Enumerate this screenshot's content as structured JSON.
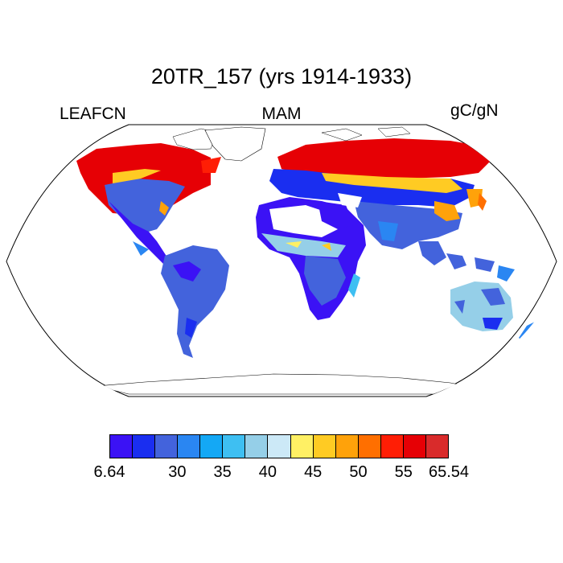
{
  "title": "20TR_157 (yrs 1914-1933)",
  "variable": "LEAFCN",
  "season": "MAM",
  "units": "gC/gN",
  "colorbar": {
    "colors": [
      "#3b12f5",
      "#1a2ef0",
      "#4363dc",
      "#2a86f2",
      "#14a8f5",
      "#3ebff2",
      "#95cfe8",
      "#cce9f7",
      "#fff064",
      "#ffcb23",
      "#ffa20a",
      "#ff6f00",
      "#ff1e05",
      "#e60005",
      "#d92b2b"
    ],
    "tick_labels": [
      "6.64",
      "30",
      "35",
      "40",
      "45",
      "50",
      "55",
      "65.54"
    ]
  },
  "chart_data": {
    "type": "heatmap",
    "projection": "Robinson (global)",
    "title": "20TR_157 (yrs 1914-1933)",
    "left_label": "LEAFCN",
    "center_label": "MAM",
    "right_label": "gC/gN",
    "value_range": [
      6.64,
      65.54
    ],
    "levels": [
      30,
      32.5,
      35,
      37.5,
      40,
      42.5,
      45,
      47.5,
      50,
      52.5,
      55,
      60
    ],
    "regions": [
      {
        "region": "High-latitude North America",
        "approx_value": 58
      },
      {
        "region": "Eastern North America",
        "approx_value": 30
      },
      {
        "region": "South America",
        "approx_value": 30
      },
      {
        "region": "Sahara (sparse)",
        "approx_value": 28
      },
      {
        "region": "Sub-Saharan Africa",
        "approx_value": 31
      },
      {
        "region": "Northern Eurasia / Siberia",
        "approx_value": 58
      },
      {
        "region": "Central Asia",
        "approx_value": 30
      },
      {
        "region": "East Asia transition",
        "approx_value": 46
      },
      {
        "region": "Australia",
        "approx_value": 36
      }
    ]
  }
}
